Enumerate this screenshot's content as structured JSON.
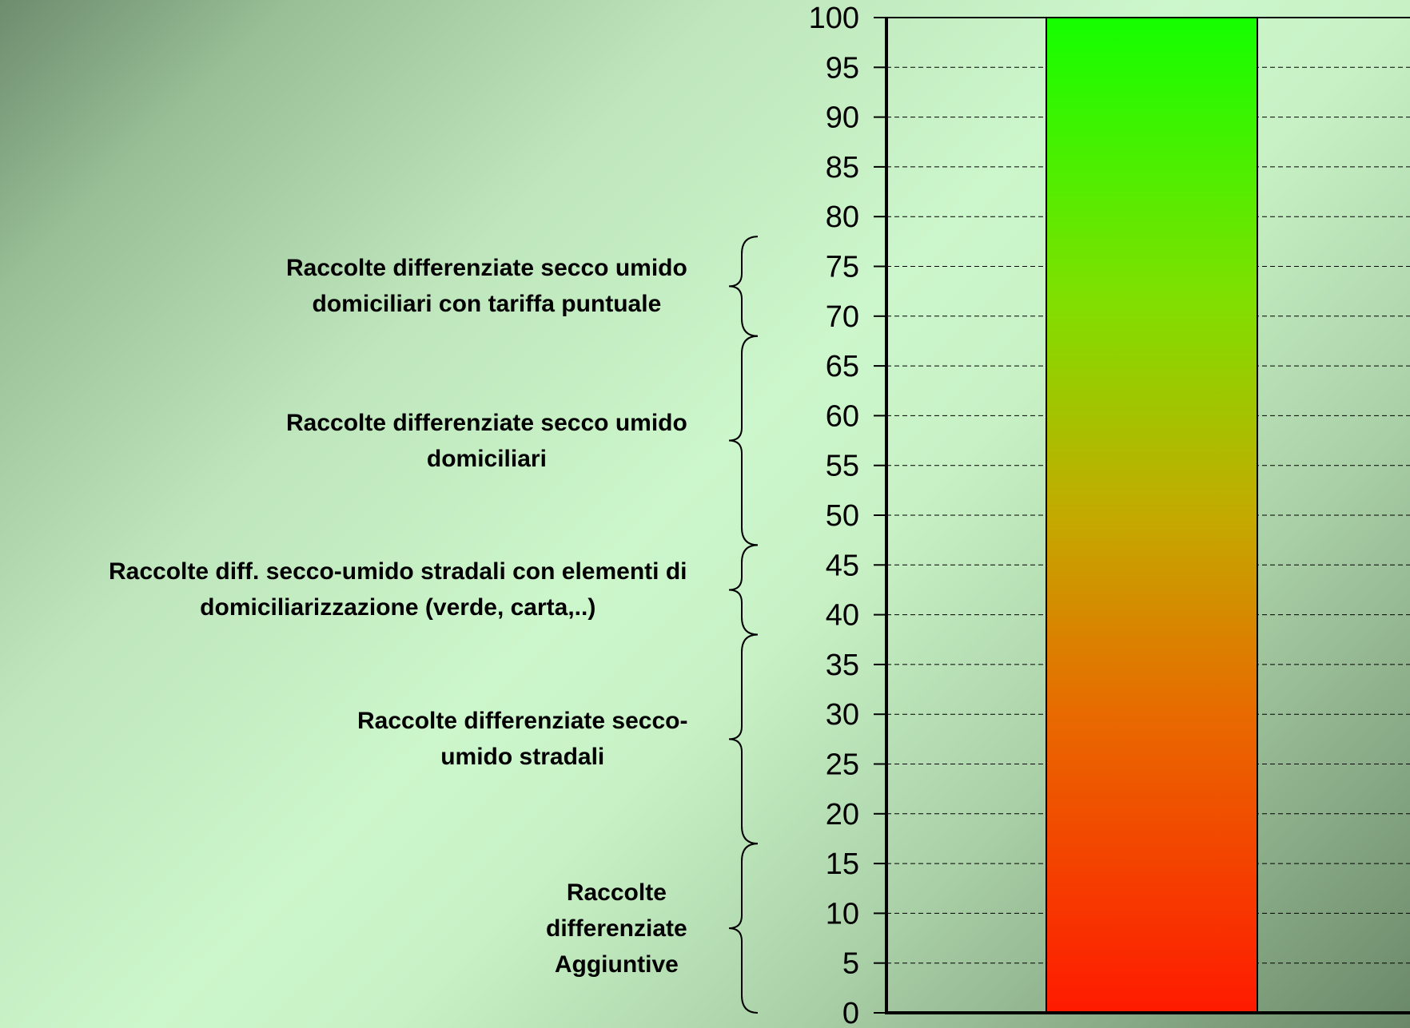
{
  "chart_data": {
    "type": "bar",
    "values": [
      100
    ],
    "ylim": [
      0,
      100
    ],
    "yticks": [
      0,
      5,
      10,
      15,
      20,
      25,
      30,
      35,
      40,
      45,
      50,
      55,
      60,
      65,
      70,
      75,
      80,
      85,
      90,
      95,
      100
    ],
    "grid": true,
    "bar_gradient": {
      "bottom": "#ff1a00",
      "mid_low": "#e86a00",
      "mid": "#c3aa00",
      "mid_high": "#7fe000",
      "top": "#14ff00"
    },
    "bands": [
      {
        "from": 0,
        "to": 17,
        "lines": [
          "Raccolte",
          "differenziate",
          "Aggiuntive"
        ]
      },
      {
        "from": 17,
        "to": 38,
        "lines": [
          "Raccolte differenziate secco-",
          "umido  stradali"
        ]
      },
      {
        "from": 38,
        "to": 47,
        "lines": [
          "Raccolte diff.  secco-umido stradali con elementi di",
          "domiciliarizzazione (verde, carta,..)"
        ]
      },
      {
        "from": 47,
        "to": 68,
        "lines": [
          "Raccolte differenziate secco umido",
          "domiciliari"
        ]
      },
      {
        "from": 68,
        "to": 78,
        "lines": [
          "Raccolte differenziate secco umido",
          "domiciliari con tariffa puntuale"
        ]
      }
    ]
  }
}
